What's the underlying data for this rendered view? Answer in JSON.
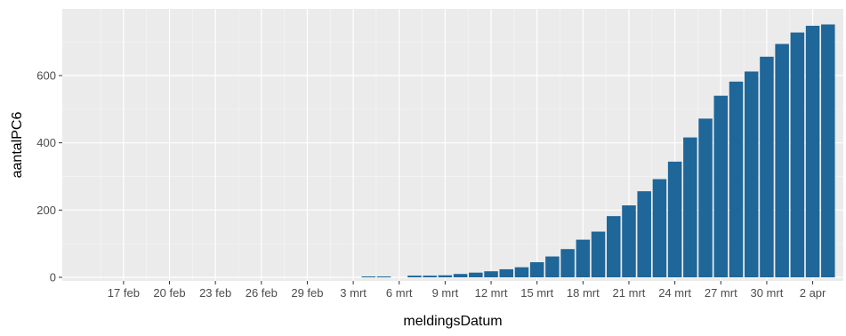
{
  "chart_data": {
    "type": "bar",
    "xlabel": "meldingsDatum",
    "ylabel": "aantalPC6",
    "ylim": [
      0,
      760
    ],
    "grid": true,
    "colors": {
      "bar": "#1F6699",
      "panel_background": "#EBEBEB",
      "grid_major": "#FFFFFF",
      "grid_minor": "#F5F5F5",
      "text": "#4D4D4D"
    },
    "y_ticks": [
      {
        "value": 0,
        "label": "0"
      },
      {
        "value": 200,
        "label": "200"
      },
      {
        "value": 400,
        "label": "400"
      },
      {
        "value": 600,
        "label": "600"
      }
    ],
    "x_ticks": [
      {
        "date": "2020-02-17",
        "label": "17 feb"
      },
      {
        "date": "2020-02-20",
        "label": "20 feb"
      },
      {
        "date": "2020-02-23",
        "label": "23 feb"
      },
      {
        "date": "2020-02-26",
        "label": "26 feb"
      },
      {
        "date": "2020-02-29",
        "label": "29 feb"
      },
      {
        "date": "2020-03-03",
        "label": "3 mrt"
      },
      {
        "date": "2020-03-06",
        "label": "6 mrt"
      },
      {
        "date": "2020-03-09",
        "label": "9 mrt"
      },
      {
        "date": "2020-03-12",
        "label": "12 mrt"
      },
      {
        "date": "2020-03-15",
        "label": "15 mrt"
      },
      {
        "date": "2020-03-18",
        "label": "18 mrt"
      },
      {
        "date": "2020-03-21",
        "label": "21 mrt"
      },
      {
        "date": "2020-03-24",
        "label": "24 mrt"
      },
      {
        "date": "2020-03-27",
        "label": "27 mrt"
      },
      {
        "date": "2020-03-30",
        "label": "30 mrt"
      },
      {
        "date": "2020-04-02",
        "label": "2 apr"
      }
    ],
    "x_range": [
      "2020-02-13",
      "2020-04-04"
    ],
    "data": [
      {
        "date": "2020-03-04",
        "value": 2
      },
      {
        "date": "2020-03-05",
        "value": 2
      },
      {
        "date": "2020-03-07",
        "value": 5
      },
      {
        "date": "2020-03-08",
        "value": 5
      },
      {
        "date": "2020-03-09",
        "value": 6
      },
      {
        "date": "2020-03-10",
        "value": 10
      },
      {
        "date": "2020-03-11",
        "value": 14
      },
      {
        "date": "2020-03-12",
        "value": 18
      },
      {
        "date": "2020-03-13",
        "value": 24
      },
      {
        "date": "2020-03-14",
        "value": 30
      },
      {
        "date": "2020-03-15",
        "value": 45
      },
      {
        "date": "2020-03-16",
        "value": 62
      },
      {
        "date": "2020-03-17",
        "value": 84
      },
      {
        "date": "2020-03-18",
        "value": 112
      },
      {
        "date": "2020-03-19",
        "value": 136
      },
      {
        "date": "2020-03-20",
        "value": 182
      },
      {
        "date": "2020-03-21",
        "value": 214
      },
      {
        "date": "2020-03-22",
        "value": 256
      },
      {
        "date": "2020-03-23",
        "value": 292
      },
      {
        "date": "2020-03-24",
        "value": 344
      },
      {
        "date": "2020-03-25",
        "value": 416
      },
      {
        "date": "2020-03-26",
        "value": 472
      },
      {
        "date": "2020-03-27",
        "value": 540
      },
      {
        "date": "2020-03-28",
        "value": 582
      },
      {
        "date": "2020-03-29",
        "value": 612
      },
      {
        "date": "2020-03-30",
        "value": 656
      },
      {
        "date": "2020-03-31",
        "value": 694
      },
      {
        "date": "2020-04-01",
        "value": 728
      },
      {
        "date": "2020-04-02",
        "value": 748
      },
      {
        "date": "2020-04-03",
        "value": 752
      }
    ]
  }
}
